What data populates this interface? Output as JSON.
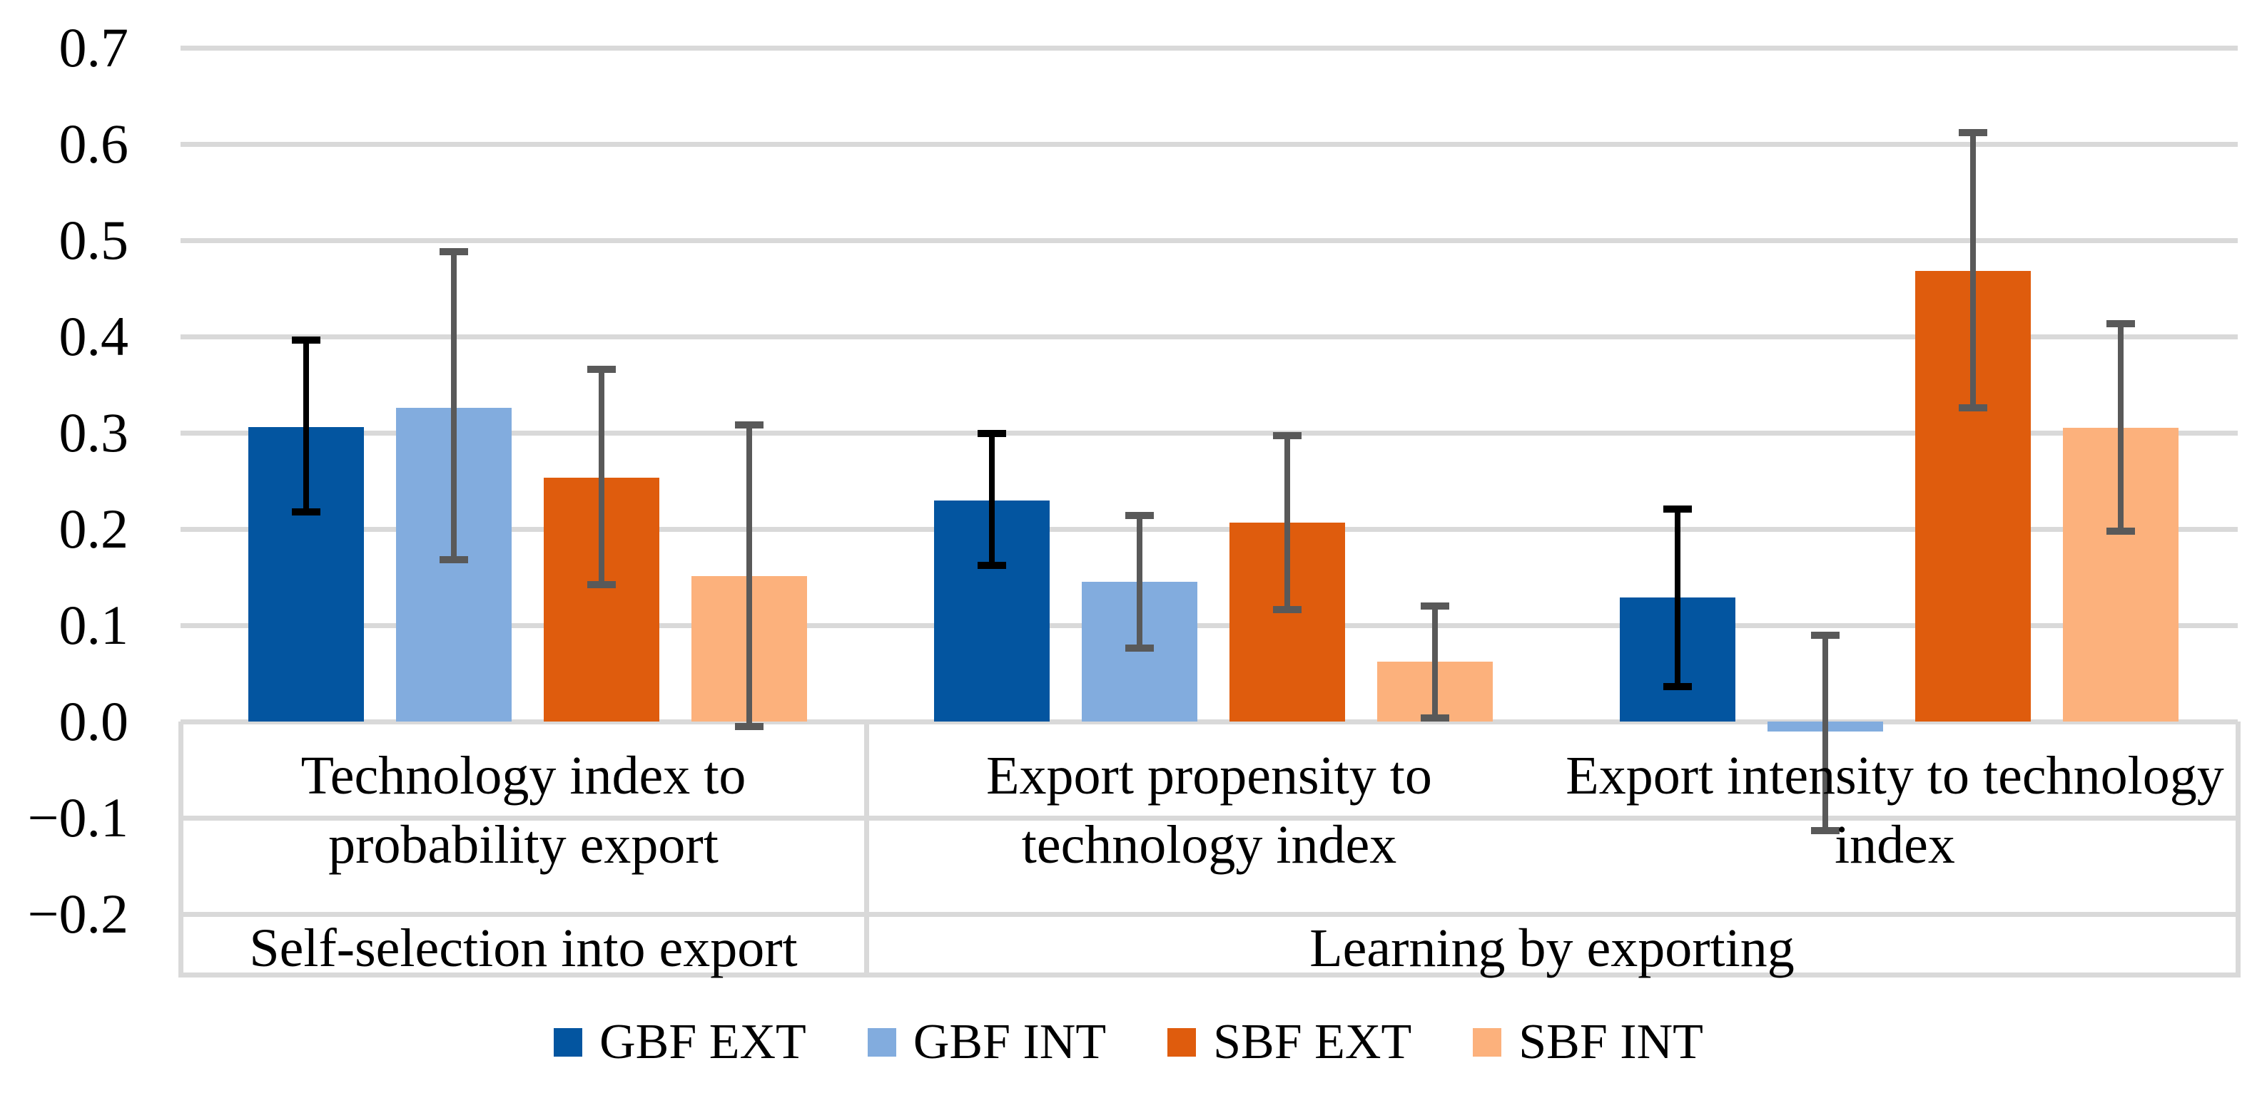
{
  "chart_data": {
    "type": "bar",
    "title": "",
    "grid": true,
    "legend_position": "bottom",
    "colors": {
      "grid": "#D9D9D9",
      "text": "#000000",
      "background": "#FFFFFF"
    },
    "y_axis": {
      "min": -0.2,
      "max": 0.7,
      "step": 0.1,
      "ticks": [
        "0.7",
        "0.6",
        "0.5",
        "0.4",
        "0.3",
        "0.2",
        "0.1",
        "0.0",
        "−0.1",
        "−0.2"
      ],
      "tick_values": [
        0.7,
        0.6,
        0.5,
        0.4,
        0.3,
        0.2,
        0.1,
        0.0,
        -0.1,
        -0.2
      ]
    },
    "categories": [
      "Technology index to probability export",
      "Export propensity to technology index",
      "Export intensity to technology index"
    ],
    "category_label_lines": [
      [
        "Technology index to",
        "probability export"
      ],
      [
        "Export propensity to",
        "technology index"
      ],
      [
        "Export intensity to technology",
        "index"
      ]
    ],
    "sections": [
      {
        "label": "Self-selection into export",
        "start": 0,
        "end": 0
      },
      {
        "label": "Learning by exporting",
        "start": 1,
        "end": 2
      }
    ],
    "series": [
      {
        "name": "GBF EXT",
        "color": "#0355A0",
        "error_color": "#000000",
        "values": [
          0.306,
          0.23,
          0.129
        ],
        "ci_low": [
          0.218,
          0.162,
          0.036
        ],
        "ci_high": [
          0.396,
          0.299,
          0.221
        ]
      },
      {
        "name": "GBF INT",
        "color": "#82ACDE",
        "error_color": "#595959",
        "values": [
          0.326,
          0.145,
          -0.01
        ],
        "ci_low": [
          0.168,
          0.076,
          -0.113
        ],
        "ci_high": [
          0.488,
          0.214,
          0.09
        ]
      },
      {
        "name": "SBF EXT",
        "color": "#DF5C0D",
        "error_color": "#595959",
        "values": [
          0.253,
          0.207,
          0.468
        ],
        "ci_low": [
          0.142,
          0.116,
          0.326
        ],
        "ci_high": [
          0.366,
          0.297,
          0.612
        ]
      },
      {
        "name": "SBF INT",
        "color": "#FCB17C",
        "error_color": "#595959",
        "values": [
          0.151,
          0.062,
          0.305
        ],
        "ci_low": [
          -0.005,
          0.004,
          0.198
        ],
        "ci_high": [
          0.308,
          0.12,
          0.413
        ]
      }
    ]
  }
}
